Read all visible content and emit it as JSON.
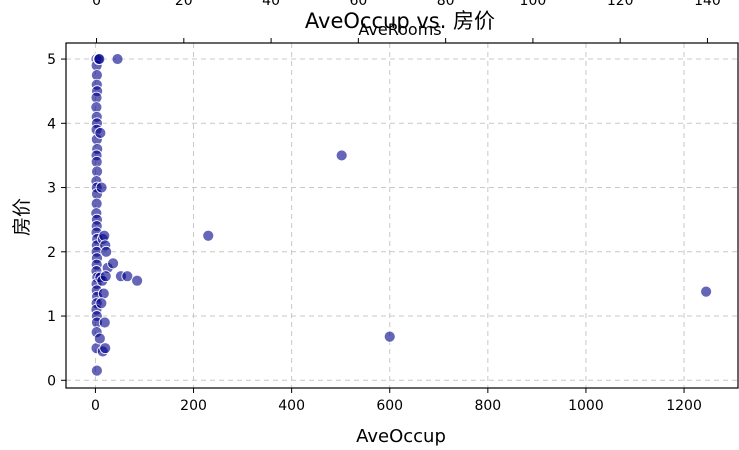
{
  "chart_data": {
    "type": "scatter",
    "title": "AveOccup vs. 房价",
    "xlabel": "AveOccup",
    "ylabel": "房价",
    "top_axis_label": "AveRooms",
    "xlim": [
      -60,
      1310
    ],
    "ylim": [
      -0.12,
      5.25
    ],
    "top_xlim": [
      -7,
      147
    ],
    "x_ticks": [
      0,
      200,
      400,
      600,
      800,
      1000,
      1200
    ],
    "y_ticks": [
      0,
      1,
      2,
      3,
      4,
      5
    ],
    "top_ticks": [
      0,
      20,
      40,
      60,
      80,
      100,
      120,
      140
    ],
    "grid": true,
    "point_color": "#00008b",
    "series": [
      {
        "x": [
          2.1,
          2.5,
          3.0,
          2.8,
          3.4,
          2.2,
          1.9,
          2.7,
          3.1,
          2.4,
          2.9,
          3.6,
          2.3,
          2.6,
          3.3,
          2.0,
          2.8,
          3.2,
          2.5,
          1.8,
          3.0,
          2.7,
          2.2,
          3.5,
          2.9,
          2.4,
          3.1,
          2.6,
          2.1,
          3.8,
          2.3,
          2.8,
          3.4,
          2.5,
          2.0,
          2.9,
          3.2,
          2.6,
          2.2,
          3.0,
          6.5,
          8.0,
          10.0,
          12.5,
          15.0,
          18.0,
          20.0,
          22.0,
          25.0,
          10.0,
          14.0,
          21.0,
          17.0,
          12.0,
          19.0,
          9.0,
          15.0,
          20.0,
          45.0,
          36.0,
          52.0,
          65.0,
          85.0,
          230.0,
          502.0,
          600.0,
          1245.0
        ],
        "y": [
          5.0,
          4.9,
          4.75,
          4.6,
          4.5,
          4.4,
          4.25,
          4.1,
          4.0,
          3.9,
          3.75,
          3.6,
          3.5,
          3.4,
          3.25,
          3.1,
          3.0,
          2.9,
          2.75,
          2.6,
          2.5,
          2.4,
          2.3,
          2.2,
          2.1,
          2.0,
          1.9,
          1.8,
          1.7,
          1.6,
          1.5,
          1.4,
          1.3,
          1.2,
          1.1,
          1.0,
          0.9,
          0.75,
          0.5,
          0.15,
          5.0,
          5.0,
          3.85,
          3.0,
          2.2,
          2.25,
          2.1,
          2.0,
          1.75,
          1.6,
          1.55,
          1.62,
          1.35,
          1.2,
          0.9,
          0.65,
          0.45,
          0.5,
          5.0,
          1.82,
          1.62,
          1.62,
          1.55,
          2.25,
          3.5,
          0.68,
          1.38
        ]
      }
    ]
  }
}
